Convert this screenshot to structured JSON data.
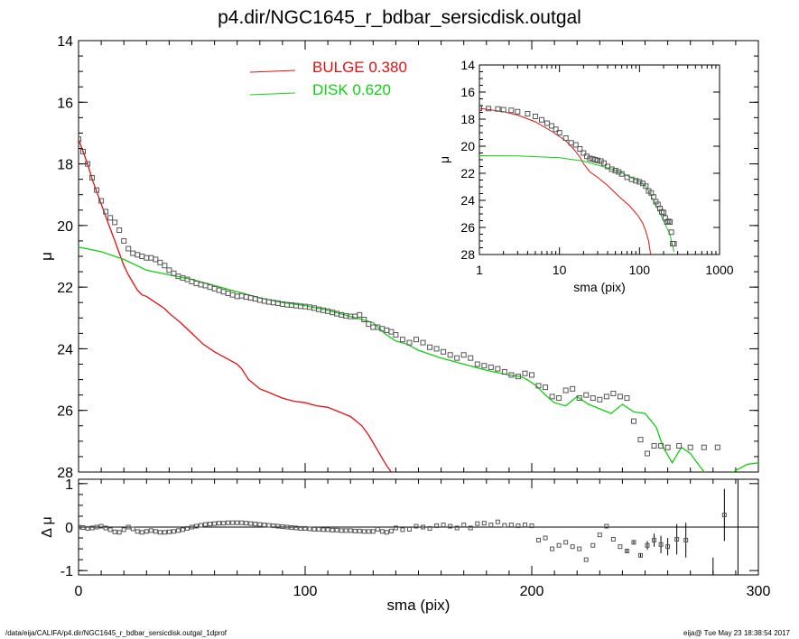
{
  "title": "p4.dir/NGC1645_r_bdbar_sersicdisk.outgal",
  "footer": {
    "left": "/data/eija/CALIFA/p4.dir/NGC1645_r_bdbar_sersicdisk.outgal_1dprof",
    "right": "eija@  Tue May 23 18:38:54 2017"
  },
  "colors": {
    "bulge": "#e01010",
    "disk": "#10d010",
    "data": "#555555",
    "axis": "#000000"
  },
  "chart_data": [
    {
      "panel": "main",
      "type": "line",
      "xlabel": "",
      "ylabel": "μ",
      "xlim": [
        0,
        300
      ],
      "ylim": [
        28,
        14
      ],
      "yticks": [
        14,
        16,
        18,
        20,
        22,
        24,
        26,
        28
      ],
      "legend": {
        "placement": "top-center",
        "entries": [
          {
            "name": "BULGE",
            "value": "0.380",
            "color": "#e01010"
          },
          {
            "name": "DISK",
            "value": "0.620",
            "color": "#10d010"
          }
        ]
      },
      "series": [
        {
          "name": "BULGE",
          "color": "#e01010",
          "x": [
            0,
            2,
            4,
            6,
            8,
            10,
            12,
            14,
            16,
            18,
            20,
            22,
            24,
            26,
            28,
            30,
            32,
            34,
            36,
            38,
            40,
            45,
            50,
            55,
            60,
            65,
            70,
            72,
            75,
            80,
            85,
            90,
            95,
            100,
            105,
            110,
            115,
            120,
            125,
            128,
            132,
            136,
            138
          ],
          "y": [
            17.2,
            17.6,
            18.0,
            18.5,
            18.9,
            19.3,
            19.7,
            20.1,
            20.5,
            20.9,
            21.3,
            21.6,
            21.85,
            22.1,
            22.25,
            22.3,
            22.4,
            22.5,
            22.6,
            22.7,
            22.85,
            23.15,
            23.5,
            23.85,
            24.1,
            24.3,
            24.5,
            24.65,
            25.0,
            25.3,
            25.45,
            25.6,
            25.7,
            25.75,
            25.85,
            25.9,
            26.05,
            26.2,
            26.5,
            26.8,
            27.3,
            27.8,
            28.0
          ]
        },
        {
          "name": "DISK",
          "color": "#10d010",
          "x": [
            0,
            10,
            20,
            30,
            40,
            50,
            60,
            70,
            80,
            90,
            100,
            110,
            120,
            125,
            130,
            135,
            140,
            145,
            150,
            160,
            170,
            180,
            190,
            195,
            198,
            202,
            206,
            210,
            215,
            220,
            225,
            230,
            235,
            240,
            245,
            250,
            255,
            258,
            262,
            266,
            270,
            275,
            280,
            285,
            290,
            295,
            300
          ],
          "y": [
            20.7,
            20.85,
            21.1,
            21.45,
            21.6,
            21.75,
            21.95,
            22.15,
            22.35,
            22.5,
            22.6,
            22.75,
            22.95,
            23.05,
            23.15,
            23.5,
            23.75,
            23.85,
            24.05,
            24.3,
            24.5,
            24.7,
            24.85,
            24.9,
            25.0,
            25.2,
            25.5,
            25.75,
            25.85,
            25.55,
            25.8,
            25.95,
            26.1,
            25.8,
            26.05,
            26.1,
            26.55,
            27.2,
            27.7,
            27.2,
            27.4,
            27.9,
            28.3,
            28.2,
            27.95,
            27.75,
            27.7
          ]
        },
        {
          "name": "data",
          "color": "#555555",
          "x": [
            0,
            2,
            4,
            6,
            8,
            10,
            12,
            14,
            16,
            18,
            20,
            22,
            24,
            26,
            28,
            30,
            32,
            34,
            36,
            38,
            40,
            42,
            44,
            46,
            48,
            50,
            52,
            54,
            56,
            58,
            60,
            62,
            64,
            66,
            68,
            70,
            72,
            74,
            76,
            78,
            80,
            82,
            84,
            86,
            88,
            90,
            92,
            94,
            96,
            98,
            100,
            102,
            104,
            106,
            108,
            110,
            112,
            114,
            116,
            118,
            120,
            122,
            124,
            126,
            128,
            130,
            132,
            134,
            136,
            138,
            140,
            143,
            146,
            149,
            152,
            155,
            158,
            161,
            164,
            167,
            170,
            173,
            176,
            179,
            182,
            185,
            188,
            191,
            194,
            197,
            200,
            203,
            206,
            209,
            212,
            215,
            218,
            221,
            224,
            227,
            230,
            233,
            236,
            239,
            242,
            245,
            248,
            251,
            254,
            257,
            260,
            265,
            270,
            276,
            282
          ],
          "y": [
            17.2,
            17.6,
            18.0,
            18.45,
            18.85,
            19.2,
            19.55,
            19.75,
            19.9,
            20.15,
            20.5,
            20.75,
            20.9,
            20.95,
            21.0,
            21.05,
            21.05,
            21.1,
            21.2,
            21.3,
            21.45,
            21.55,
            21.65,
            21.7,
            21.75,
            21.82,
            21.88,
            21.92,
            21.95,
            22.0,
            22.05,
            22.1,
            22.15,
            22.2,
            22.25,
            22.3,
            22.28,
            22.32,
            22.35,
            22.38,
            22.42,
            22.45,
            22.48,
            22.5,
            22.52,
            22.55,
            22.57,
            22.58,
            22.6,
            22.62,
            22.63,
            22.65,
            22.68,
            22.72,
            22.75,
            22.78,
            22.82,
            22.86,
            22.9,
            22.93,
            22.95,
            22.95,
            22.9,
            23.05,
            23.2,
            23.3,
            23.3,
            23.35,
            23.4,
            23.45,
            23.55,
            23.7,
            23.8,
            23.7,
            23.8,
            23.95,
            24.0,
            24.1,
            24.2,
            24.3,
            24.2,
            24.3,
            24.5,
            24.55,
            24.6,
            24.65,
            24.75,
            24.85,
            24.9,
            24.8,
            24.85,
            25.2,
            25.25,
            25.55,
            25.6,
            25.35,
            25.3,
            25.6,
            25.5,
            25.6,
            25.65,
            25.55,
            25.45,
            25.55,
            25.6,
            26.35,
            26.95,
            27.4,
            27.15,
            27.15,
            27.2,
            27.15,
            27.2,
            27.2,
            27.2
          ]
        }
      ]
    },
    {
      "panel": "inset",
      "type": "line",
      "xlabel": "sma (pix)",
      "ylabel": "μ",
      "xscale": "log",
      "xlim": [
        1,
        1000
      ],
      "ylim": [
        28,
        14
      ],
      "xticks": [
        1,
        10,
        100,
        1000
      ],
      "yticks": [
        14,
        16,
        18,
        20,
        22,
        24,
        26,
        28
      ],
      "series": [
        {
          "name": "BULGE",
          "color": "#e01010",
          "x": [
            1,
            2,
            3,
            5,
            8,
            12,
            15,
            18,
            20,
            24,
            30,
            40,
            55,
            75,
            95,
            110,
            120,
            130,
            138
          ],
          "y": [
            17.2,
            17.45,
            17.7,
            18.2,
            18.9,
            19.6,
            20.2,
            20.8,
            21.3,
            21.9,
            22.3,
            22.9,
            23.7,
            24.4,
            25.1,
            25.7,
            26.3,
            27.0,
            28.0
          ]
        },
        {
          "name": "DISK",
          "color": "#10d010",
          "x": [
            1,
            3,
            10,
            20,
            40,
            60,
            80,
            100,
            120,
            150,
            200,
            240,
            270
          ],
          "y": [
            20.7,
            20.72,
            20.85,
            21.1,
            21.6,
            21.95,
            22.35,
            22.6,
            22.95,
            24.0,
            25.5,
            26.5,
            27.8
          ]
        },
        {
          "name": "data",
          "color": "#555555",
          "x": [
            1,
            1.3,
            1.7,
            2,
            2.5,
            3,
            4,
            5,
            6,
            7,
            8,
            9,
            10,
            12,
            14,
            16,
            18,
            20,
            22,
            24,
            26,
            28,
            30,
            33,
            36,
            40,
            45,
            50,
            55,
            60,
            70,
            80,
            90,
            100,
            110,
            120,
            130,
            140,
            150,
            160,
            170,
            180,
            190,
            200,
            210,
            220,
            230,
            240,
            250,
            260,
            270
          ],
          "y": [
            17.2,
            17.22,
            17.25,
            17.3,
            17.35,
            17.45,
            17.6,
            17.8,
            18.05,
            18.3,
            18.5,
            18.75,
            19.0,
            19.4,
            19.75,
            19.9,
            20.2,
            20.5,
            20.75,
            20.9,
            20.95,
            21.0,
            21.05,
            21.1,
            21.25,
            21.5,
            21.7,
            21.8,
            21.9,
            22.05,
            22.3,
            22.45,
            22.55,
            22.63,
            22.75,
            22.95,
            23.3,
            23.45,
            23.75,
            24.1,
            24.3,
            24.6,
            24.85,
            24.9,
            25.3,
            25.6,
            25.55,
            25.6,
            26.35,
            27.2,
            27.2
          ]
        }
      ]
    },
    {
      "panel": "residual",
      "type": "scatter",
      "xlabel": "sma (pix)",
      "ylabel": "Δ μ",
      "xlim": [
        0,
        300
      ],
      "ylim": [
        -1.1,
        1.1
      ],
      "xticks": [
        0,
        100,
        200,
        300
      ],
      "yticks": [
        -1,
        0,
        1
      ],
      "series": [
        {
          "name": "residual",
          "color": "#555555",
          "x": [
            0,
            2,
            4,
            6,
            8,
            10,
            12,
            14,
            16,
            18,
            20,
            22,
            24,
            26,
            28,
            30,
            32,
            34,
            36,
            38,
            40,
            42,
            44,
            46,
            48,
            50,
            52,
            54,
            56,
            58,
            60,
            62,
            64,
            66,
            68,
            70,
            72,
            74,
            76,
            78,
            80,
            82,
            84,
            86,
            88,
            90,
            92,
            94,
            96,
            98,
            100,
            102,
            104,
            106,
            108,
            110,
            112,
            114,
            116,
            118,
            120,
            122,
            124,
            126,
            128,
            130,
            132,
            134,
            136,
            138,
            140,
            143,
            146,
            149,
            152,
            155,
            158,
            161,
            164,
            167,
            170,
            173,
            176,
            179,
            182,
            185,
            188,
            191,
            194,
            197,
            200,
            203,
            206,
            209,
            212,
            215,
            218,
            221,
            224,
            227,
            230,
            233,
            236,
            239,
            242,
            245,
            248,
            251,
            254,
            257,
            260,
            264,
            268,
            285
          ],
          "y": [
            0.0,
            -0.01,
            -0.03,
            -0.02,
            0.0,
            0.02,
            -0.02,
            -0.06,
            -0.11,
            -0.12,
            -0.06,
            0.0,
            -0.04,
            -0.1,
            -0.12,
            -0.1,
            -0.08,
            -0.1,
            -0.12,
            -0.12,
            -0.11,
            -0.1,
            -0.08,
            -0.06,
            -0.03,
            0.0,
            0.02,
            0.04,
            0.06,
            0.07,
            0.08,
            0.09,
            0.09,
            0.1,
            0.1,
            0.1,
            0.1,
            0.09,
            0.08,
            0.07,
            0.06,
            0.05,
            0.04,
            0.03,
            0.02,
            0.01,
            0.0,
            -0.01,
            -0.02,
            -0.03,
            -0.03,
            -0.04,
            -0.05,
            -0.05,
            -0.06,
            -0.06,
            -0.07,
            -0.07,
            -0.08,
            -0.08,
            -0.08,
            -0.09,
            -0.09,
            -0.1,
            -0.1,
            -0.1,
            -0.05,
            -0.1,
            -0.12,
            -0.09,
            -0.02,
            -0.06,
            -0.05,
            0.02,
            0.0,
            -0.03,
            0.03,
            0.05,
            0.02,
            -0.02,
            0.05,
            -0.02,
            0.08,
            0.09,
            0.05,
            0.12,
            0.04,
            0.05,
            0.03,
            0.05,
            0.03,
            -0.3,
            -0.25,
            -0.5,
            -0.42,
            -0.35,
            -0.45,
            -0.5,
            -0.75,
            -0.42,
            -0.18,
            0.02,
            -0.28,
            -0.45,
            -0.55,
            -0.35,
            -0.65,
            -0.42,
            -0.3,
            -0.4,
            -0.45,
            -0.28,
            -0.3,
            0.28
          ],
          "err": [
            0,
            0,
            0,
            0,
            0,
            0,
            0,
            0,
            0,
            0,
            0,
            0,
            0,
            0,
            0,
            0,
            0,
            0,
            0,
            0,
            0,
            0,
            0,
            0,
            0,
            0,
            0,
            0,
            0,
            0,
            0,
            0,
            0,
            0,
            0,
            0,
            0,
            0,
            0,
            0,
            0,
            0,
            0,
            0,
            0,
            0,
            0,
            0,
            0,
            0,
            0,
            0,
            0,
            0,
            0,
            0,
            0,
            0,
            0,
            0,
            0,
            0,
            0,
            0,
            0,
            0,
            0,
            0,
            0,
            0,
            0,
            0,
            0,
            0,
            0,
            0,
            0,
            0,
            0,
            0,
            0,
            0,
            0,
            0,
            0,
            0,
            0,
            0,
            0,
            0,
            0,
            0,
            0,
            0,
            0,
            0,
            0,
            0,
            0,
            0,
            0,
            0,
            0,
            0,
            0.05,
            0.05,
            0.05,
            0.1,
            0.15,
            0.2,
            0.2,
            0.35,
            0.4,
            0.6
          ]
        }
      ]
    }
  ]
}
